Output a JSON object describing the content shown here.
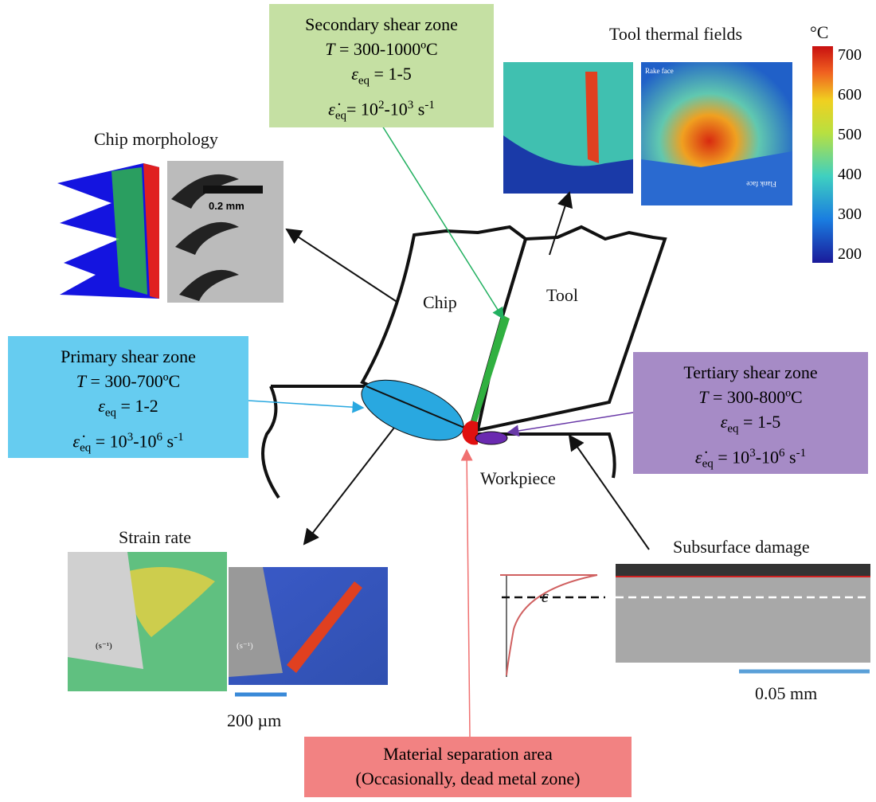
{
  "secondary_zone": {
    "title": "Secondary shear zone",
    "temperature": [
      "T",
      " = 300-1000ºC"
    ],
    "strain": [
      "ε",
      "eq",
      " = 1-5"
    ],
    "strain_rate": [
      "ε̇",
      "eq",
      "= 10",
      "2",
      "-10",
      "3",
      " s",
      "-1"
    ]
  },
  "primary_zone": {
    "title": "Primary shear zone",
    "temperature": [
      "T",
      " = 300-700ºC"
    ],
    "strain": [
      "ε",
      "eq",
      " = 1-2"
    ],
    "strain_rate": [
      "ε̇",
      "eq",
      " = 10",
      "3",
      "-10",
      "6",
      " s",
      "-1"
    ]
  },
  "tertiary_zone": {
    "title": "Tertiary shear zone",
    "temperature": [
      "T",
      " = 300-800ºC"
    ],
    "strain": [
      "ε",
      "eq",
      " = 1-5"
    ],
    "strain_rate": [
      "ε̇",
      "eq",
      " = 10",
      "3",
      "-10",
      "6",
      " s",
      "-1"
    ]
  },
  "tool_thermal_fields": {
    "title": "Tool thermal fields",
    "unit": "°C",
    "ticks": [
      700,
      600,
      500,
      400,
      300,
      200
    ],
    "rake_face": "Rake face",
    "flank_face": "Flank face"
  },
  "chip_morphology": {
    "title": "Chip morphology",
    "scale": "0.2 mm"
  },
  "labels": {
    "chip": "Chip",
    "tool": "Tool",
    "workpiece": "Workpiece"
  },
  "strain_rate": {
    "title": "Strain rate",
    "unit": "(s⁻¹)",
    "scale": "200 µm"
  },
  "subsurface_damage": {
    "title": "Subsurface damage",
    "symbol": "ε",
    "scale": "0.05 mm"
  },
  "material_separation": {
    "title": "Material separation area",
    "note": "(Occasionally, dead metal zone)"
  }
}
